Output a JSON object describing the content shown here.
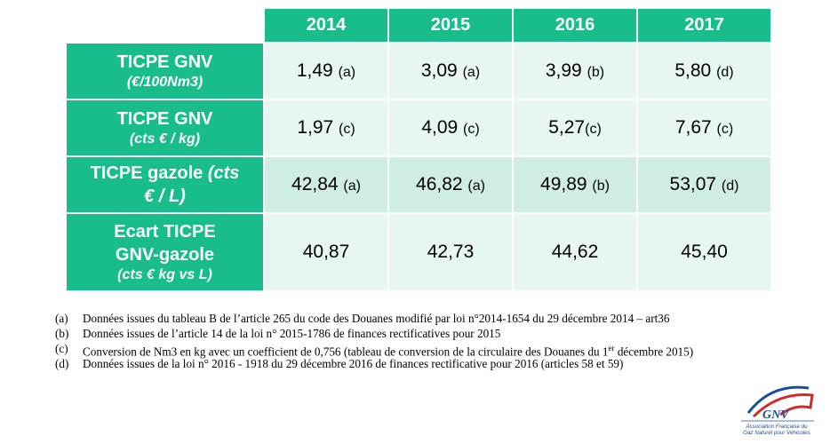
{
  "table": {
    "years": [
      "2014",
      "2015",
      "2016",
      "2017"
    ],
    "rows": [
      {
        "label_main": "TICPE GNV",
        "label_sub": "(€/100Nm3)",
        "cells": [
          {
            "value": "1,49",
            "ref": "(a)"
          },
          {
            "value": "3,09",
            "ref": "(a)"
          },
          {
            "value": "3,99",
            "ref": "(b)"
          },
          {
            "value": "5,80",
            "ref": "(d)"
          }
        ]
      },
      {
        "label_main": "TICPE GNV",
        "label_sub": "(cts € / kg)",
        "cells": [
          {
            "value": "1,97",
            "ref": "(c)"
          },
          {
            "value": "4,09",
            "ref": "(c)"
          },
          {
            "value": "5,27",
            "ref": "(c)"
          },
          {
            "value": "7,67",
            "ref": "(c)"
          }
        ]
      },
      {
        "label_main": "TICPE gazole",
        "label_sub_a": "(cts",
        "label_sub_b": "€ / L)",
        "cells": [
          {
            "value": "42,84",
            "ref": "(a)"
          },
          {
            "value": "46,82",
            "ref": "(a)"
          },
          {
            "value": "49,89",
            "ref": "(b)"
          },
          {
            "value": "53,07",
            "ref": "(d)"
          }
        ]
      },
      {
        "label_line1": "Ecart TICPE",
        "label_line2": "GNV-gazole",
        "label_sub": "(cts € kg vs L)",
        "cells": [
          {
            "value": "40,87"
          },
          {
            "value": "42,73"
          },
          {
            "value": "44,62"
          },
          {
            "value": "45,40"
          }
        ]
      }
    ]
  },
  "notes": [
    {
      "marker": "(a)",
      "text": "Données issues du tableau B de l’article 265 du code des Douanes modifié par loi n°2014-1654 du 29 décembre 2014 – art36"
    },
    {
      "marker": "(b)",
      "text": "Données issues de l’article 14 de la loi n° 2015-1786 de finances rectificatives pour 2015"
    },
    {
      "marker": "(c)",
      "text_before": "Conversion de Nm3 en kg avec un coefficient de 0,756 (tableau de conversion de la circulaire des Douanes du 1",
      "sup": "er",
      "text_after": " décembre 2015)"
    },
    {
      "marker": "(d)",
      "text": "Données issues de la loi n° 2016 - 1918 du 29 décembre 2016 de finances rectificative pour 2016 (articles 58 et 59)"
    }
  ],
  "logo": {
    "mark": "GNV",
    "caption_line1": "Association Française du",
    "caption_line2": "Gaz Naturel pour Véhicules",
    "colors": {
      "blue": "#1a4d9c",
      "red": "#d22b2b"
    }
  },
  "colors": {
    "header_green": "#19bd8c",
    "cell_light": "#e8f6f0",
    "cell_mid": "#cfeee1"
  }
}
